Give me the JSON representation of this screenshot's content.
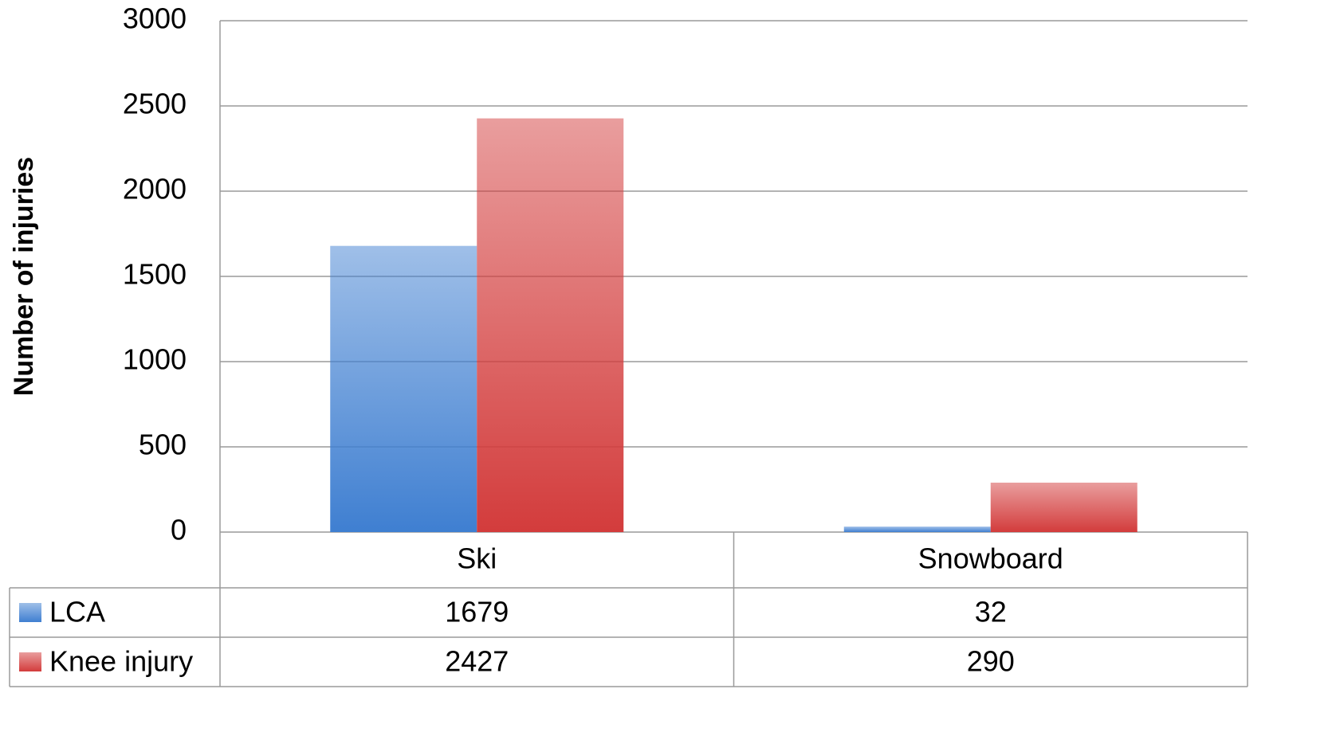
{
  "chart_data": {
    "type": "bar",
    "y_label": "Number of injuries",
    "categories": [
      "Ski",
      "Snowboard"
    ],
    "series": [
      {
        "name": "LCA",
        "color": "#3f7fd1",
        "values": [
          1679,
          32
        ]
      },
      {
        "name": "Knee injury",
        "color": "#d33c3c",
        "values": [
          2427,
          290
        ]
      }
    ],
    "ylim": [
      0,
      3000
    ],
    "yticks": [
      0,
      500,
      1000,
      1500,
      2000,
      2500,
      3000
    ],
    "grid": true,
    "data_table": true
  }
}
